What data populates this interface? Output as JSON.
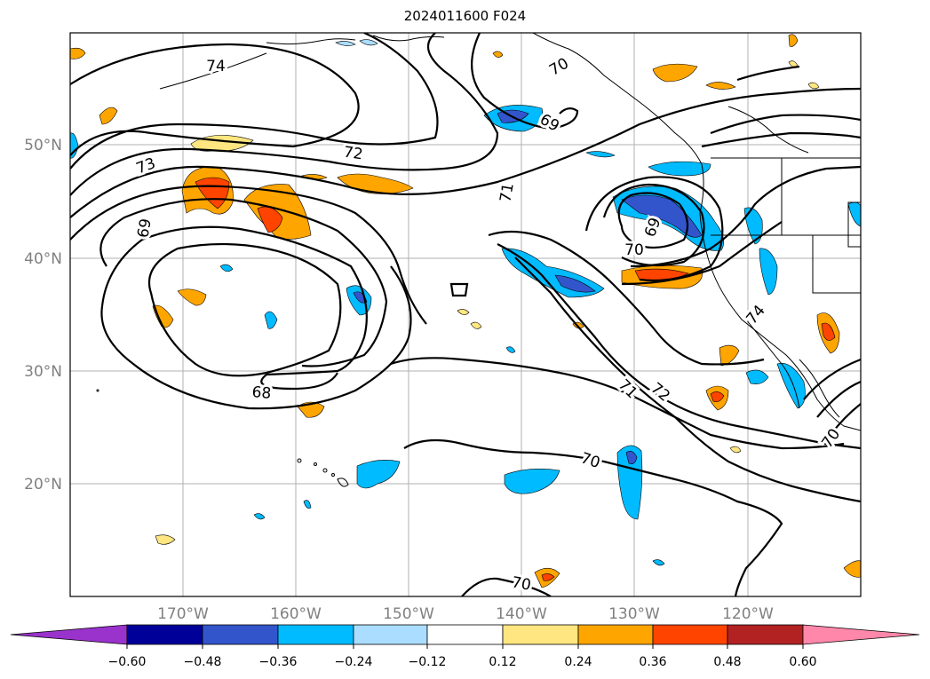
{
  "title": "2024011600 F024",
  "map": {
    "lon_labels": [
      "170°W",
      "160°W",
      "150°W",
      "140°W",
      "130°W",
      "120°W"
    ],
    "lat_labels": [
      "50°N",
      "40°N",
      "30°N",
      "20°N"
    ],
    "contour_labels": [
      "74",
      "73",
      "72",
      "71",
      "70",
      "69",
      "68",
      "70",
      "71",
      "72",
      "69",
      "70",
      "70",
      "70",
      "69",
      "74"
    ],
    "colors": {
      "frame": "#000000",
      "grid": "#b0b0b0",
      "tick_label": "#808080"
    }
  },
  "colorbar": {
    "tick_labels": [
      "−0.60",
      "−0.48",
      "−0.36",
      "−0.24",
      "−0.12",
      "0.12",
      "0.24",
      "0.36",
      "0.48",
      "0.60"
    ],
    "colors": [
      "#9933cc",
      "#000099",
      "#3355cc",
      "#00bbff",
      "#aaddff",
      "#ffffff",
      "#ffe680",
      "#ffa500",
      "#ff4400",
      "#b22222",
      "#ff88aa"
    ]
  }
}
